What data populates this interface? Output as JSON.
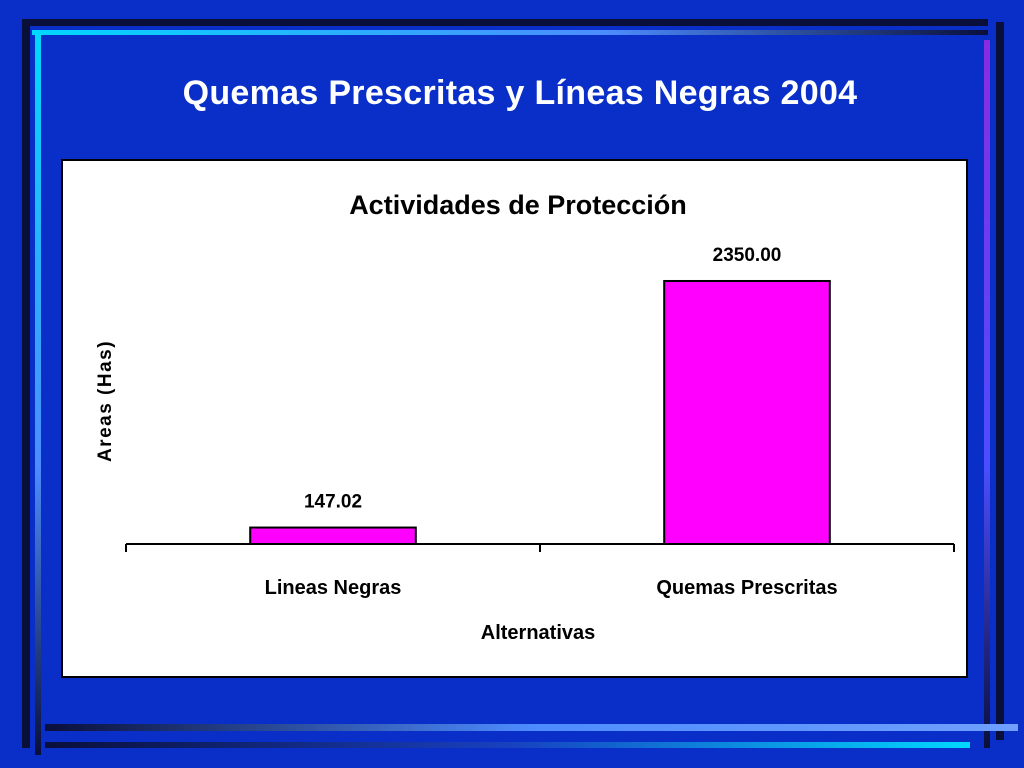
{
  "slide": {
    "title": "Quemas Prescritas y Líneas Negras 2004"
  },
  "colors": {
    "background": "#0a2fc8",
    "bar_fill": "#ff00ff",
    "frame_dark": "#0a0f3a",
    "frame_cyan": "#00d8ff",
    "frame_light": "#4d8cff",
    "frame_purple": "#8a2be2"
  },
  "chart_data": {
    "type": "bar",
    "title": "Actividades de Protección",
    "xlabel": "Alternativas",
    "ylabel": "Areas (Has)",
    "categories": [
      "Lineas Negras",
      "Quemas Prescritas"
    ],
    "values": [
      147.02,
      2350.0
    ],
    "value_labels": [
      "147.02",
      "2350.00"
    ],
    "ylim": [
      0,
      2600
    ],
    "grid": false,
    "legend": "none"
  }
}
